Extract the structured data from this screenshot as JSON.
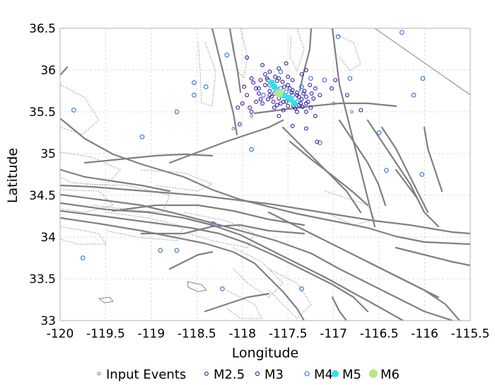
{
  "chart_data": {
    "type": "scatter",
    "xlabel": "Longitude",
    "ylabel": "Latitude",
    "xlim": [
      -120,
      -115.5
    ],
    "ylim": [
      33,
      36.5
    ],
    "grid": true,
    "legend_placement": "bottom",
    "x_ticks": [
      -120,
      -119.5,
      -119,
      -118.5,
      -118,
      -117.5,
      -117,
      -116.5,
      -116,
      -115.5
    ],
    "x_tick_labels": [
      "-120",
      "-119.5",
      "-119",
      "-118.5",
      "-118",
      "-117.5",
      "-117",
      "-116.5",
      "-116",
      "-115.5"
    ],
    "y_ticks": [
      33,
      33.5,
      34,
      34.5,
      35,
      35.5,
      36,
      36.5
    ],
    "y_tick_labels": [
      "33",
      "33.5",
      "34",
      "34.5",
      "35",
      "35.5",
      "36",
      "36.5"
    ],
    "legend": [
      {
        "label": "Input Events",
        "color": "#808080",
        "style": "open"
      },
      {
        "label": "M2.5",
        "color": "#1f2a9c",
        "style": "open"
      },
      {
        "label": "M3",
        "color": "#3a1aa8",
        "style": "open"
      },
      {
        "label": "M4",
        "color": "#2f6fe0",
        "style": "open"
      },
      {
        "label": "M5",
        "color": "#33e0e8",
        "style": "filled"
      },
      {
        "label": "M6",
        "color": "#b8e68a",
        "style": "filled"
      }
    ],
    "series": [
      {
        "name": "M6",
        "points": [
          [
            -117.6,
            35.72
          ]
        ]
      },
      {
        "name": "M5",
        "points": [
          [
            -117.68,
            35.85
          ],
          [
            -117.65,
            35.8
          ],
          [
            -117.62,
            35.76
          ],
          [
            -117.55,
            35.7
          ],
          [
            -117.5,
            35.67
          ],
          [
            -117.47,
            35.65
          ],
          [
            -117.43,
            35.6
          ]
        ]
      },
      {
        "name": "M4",
        "points": [
          [
            -117.72,
            35.88
          ],
          [
            -117.7,
            35.82
          ],
          [
            -117.58,
            35.78
          ],
          [
            -117.52,
            35.74
          ],
          [
            -117.45,
            35.7
          ],
          [
            -117.4,
            35.62
          ],
          [
            -117.77,
            35.7
          ],
          [
            -117.35,
            35.8
          ],
          [
            -117.58,
            35.98
          ],
          [
            -117.25,
            35.9
          ],
          [
            -117.1,
            35.88
          ],
          [
            -116.82,
            35.9
          ],
          [
            -116.12,
            35.7
          ],
          [
            -116.02,
            35.9
          ],
          [
            -118.53,
            35.7
          ],
          [
            -118.53,
            35.85
          ],
          [
            -118.4,
            35.8
          ],
          [
            -116.25,
            36.45
          ],
          [
            -116.95,
            36.4
          ],
          [
            -116.5,
            35.25
          ],
          [
            -117.15,
            35.13
          ],
          [
            -117.9,
            35.05
          ],
          [
            -116.42,
            34.8
          ],
          [
            -116.03,
            34.75
          ],
          [
            -118.32,
            34.16
          ],
          [
            -117.35,
            33.38
          ],
          [
            -118.22,
            33.38
          ],
          [
            -118.9,
            33.84
          ],
          [
            -118.72,
            33.84
          ],
          [
            -119.75,
            33.75
          ],
          [
            -119.85,
            35.52
          ],
          [
            -119.1,
            35.2
          ],
          [
            -118.72,
            35.5
          ],
          [
            -118.17,
            36.18
          ]
        ]
      },
      {
        "name": "M3",
        "points": [
          [
            -117.9,
            35.9
          ],
          [
            -117.88,
            35.85
          ],
          [
            -117.85,
            35.78
          ],
          [
            -117.82,
            35.72
          ],
          [
            -117.8,
            35.65
          ],
          [
            -117.78,
            35.6
          ],
          [
            -117.75,
            35.95
          ],
          [
            -117.73,
            35.9
          ],
          [
            -117.7,
            35.75
          ],
          [
            -117.68,
            35.68
          ],
          [
            -117.66,
            35.62
          ],
          [
            -117.64,
            35.92
          ],
          [
            -117.62,
            35.87
          ],
          [
            -117.6,
            35.66
          ],
          [
            -117.58,
            35.6
          ],
          [
            -117.56,
            35.86
          ],
          [
            -117.54,
            35.8
          ],
          [
            -117.52,
            35.62
          ],
          [
            -117.5,
            35.57
          ],
          [
            -117.48,
            35.78
          ],
          [
            -117.46,
            35.73
          ],
          [
            -117.44,
            35.57
          ],
          [
            -117.42,
            35.54
          ],
          [
            -117.4,
            35.73
          ],
          [
            -117.38,
            35.68
          ],
          [
            -117.36,
            35.6
          ],
          [
            -117.34,
            35.56
          ],
          [
            -117.32,
            35.75
          ],
          [
            -117.3,
            35.68
          ],
          [
            -117.28,
            35.62
          ],
          [
            -117.26,
            35.82
          ],
          [
            -117.24,
            35.72
          ],
          [
            -117.22,
            35.66
          ],
          [
            -117.2,
            35.78
          ],
          [
            -117.8,
            35.88
          ],
          [
            -117.75,
            35.82
          ],
          [
            -117.7,
            35.98
          ],
          [
            -117.6,
            36.02
          ],
          [
            -117.5,
            35.92
          ],
          [
            -117.45,
            35.88
          ],
          [
            -117.4,
            35.5
          ],
          [
            -117.55,
            35.52
          ],
          [
            -117.65,
            35.55
          ],
          [
            -117.85,
            35.62
          ],
          [
            -117.95,
            35.7
          ],
          [
            -117.98,
            35.8
          ],
          [
            -118.0,
            35.6
          ],
          [
            -117.92,
            35.55
          ],
          [
            -117.3,
            35.5
          ],
          [
            -117.25,
            35.55
          ],
          [
            -117.15,
            35.7
          ],
          [
            -117.35,
            35.95
          ],
          [
            -117.3,
            36.0
          ],
          [
            -117.52,
            36.08
          ],
          [
            -117.78,
            36.06
          ],
          [
            -117.95,
            36.15
          ],
          [
            -117.2,
            35.45
          ],
          [
            -117.6,
            35.45
          ],
          [
            -117.9,
            35.5
          ],
          [
            -118.05,
            35.55
          ],
          [
            -117.02,
            35.78
          ],
          [
            -116.98,
            35.88
          ],
          [
            -116.85,
            35.7
          ],
          [
            -116.7,
            35.52
          ],
          [
            -117.3,
            35.3
          ],
          [
            -117.45,
            35.33
          ],
          [
            -118.03,
            35.35
          ],
          [
            -117.18,
            35.14
          ]
        ]
      },
      {
        "name": "M2.5",
        "points": [
          [
            -117.7,
            35.7
          ],
          [
            -117.65,
            35.72
          ],
          [
            -117.55,
            35.62
          ],
          [
            -117.5,
            35.82
          ],
          [
            -117.45,
            35.76
          ],
          [
            -117.4,
            35.7
          ],
          [
            -117.35,
            35.65
          ],
          [
            -117.3,
            35.6
          ],
          [
            -117.62,
            35.58
          ],
          [
            -117.72,
            35.65
          ],
          [
            -117.82,
            35.78
          ],
          [
            -117.6,
            35.9
          ],
          [
            -117.38,
            35.58
          ],
          [
            -117.33,
            35.72
          ]
        ]
      },
      {
        "name": "Input Events",
        "points": [
          [
            -117.9,
            35.45
          ],
          [
            -118.1,
            35.3
          ],
          [
            -117.0,
            35.6
          ],
          [
            -116.8,
            35.5
          ]
        ]
      }
    ]
  }
}
